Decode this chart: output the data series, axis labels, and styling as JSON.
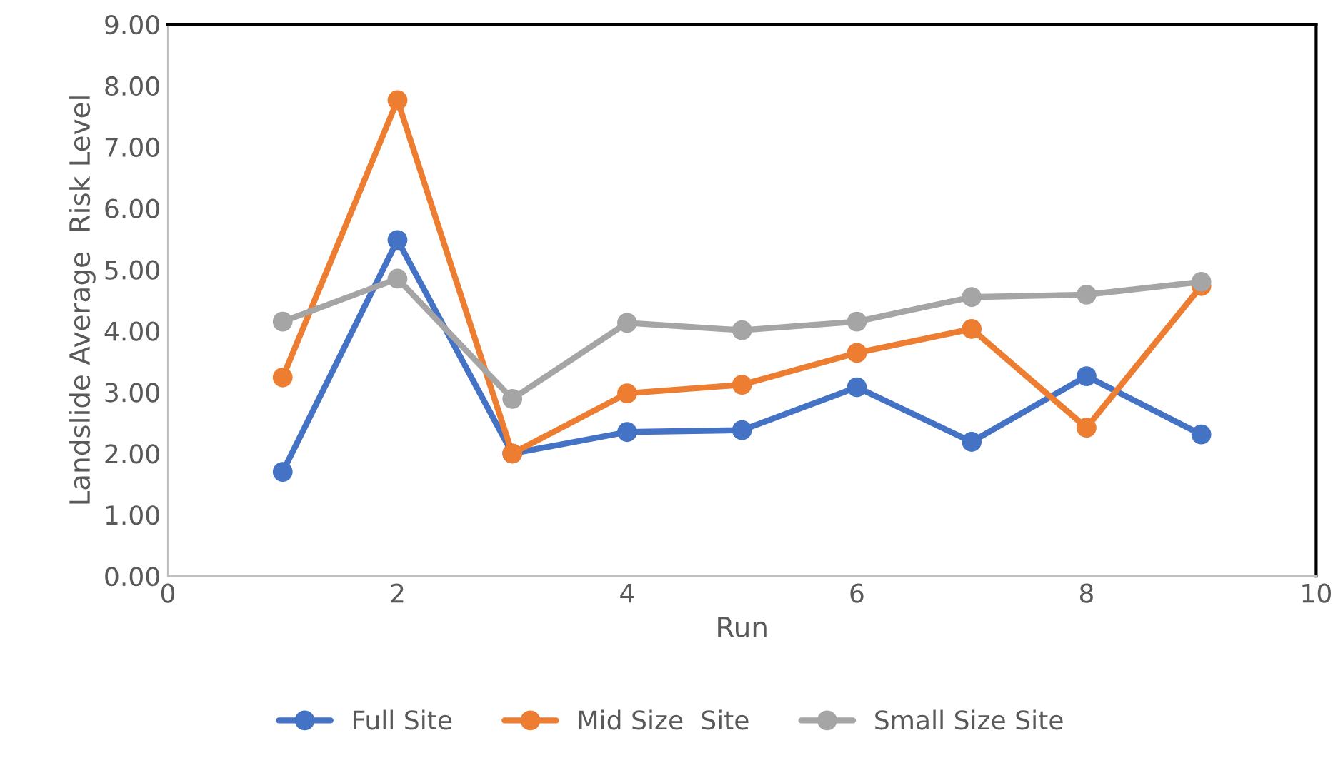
{
  "chart_data": {
    "type": "line",
    "xlabel": "Run",
    "ylabel": "Landslide Average  Risk Level",
    "x": [
      1,
      2,
      3,
      4,
      5,
      6,
      7,
      8,
      9
    ],
    "series": [
      {
        "name": "Full Site",
        "color": "#4472c4",
        "values": [
          1.7,
          5.48,
          2.0,
          2.35,
          2.38,
          3.08,
          2.19,
          3.26,
          2.31
        ]
      },
      {
        "name": "Mid Size  Site",
        "color": "#ed7d31",
        "values": [
          3.24,
          7.76,
          2.0,
          2.98,
          3.12,
          3.64,
          4.03,
          2.42,
          4.73
        ]
      },
      {
        "name": "Small Size Site",
        "color": "#a5a5a5",
        "values": [
          4.15,
          4.85,
          2.89,
          4.13,
          4.01,
          4.15,
          4.55,
          4.59,
          4.8
        ]
      }
    ],
    "xlim": [
      0,
      10
    ],
    "xticks": [
      0,
      2,
      4,
      6,
      8,
      10
    ],
    "ylim": [
      0,
      9
    ],
    "yticks": [
      {
        "value": 0,
        "label": "0.00"
      },
      {
        "value": 1,
        "label": "1.00"
      },
      {
        "value": 2,
        "label": "2.00"
      },
      {
        "value": 3,
        "label": "3.00"
      },
      {
        "value": 4,
        "label": "4.00"
      },
      {
        "value": 5,
        "label": "5.00"
      },
      {
        "value": 6,
        "label": "6.00"
      },
      {
        "value": 7,
        "label": "7.00"
      },
      {
        "value": 8,
        "label": "8.00"
      },
      {
        "value": 9,
        "label": "9.00"
      }
    ],
    "grid": false,
    "legend": "bottom",
    "marker": "circle",
    "line_style": "solid"
  }
}
